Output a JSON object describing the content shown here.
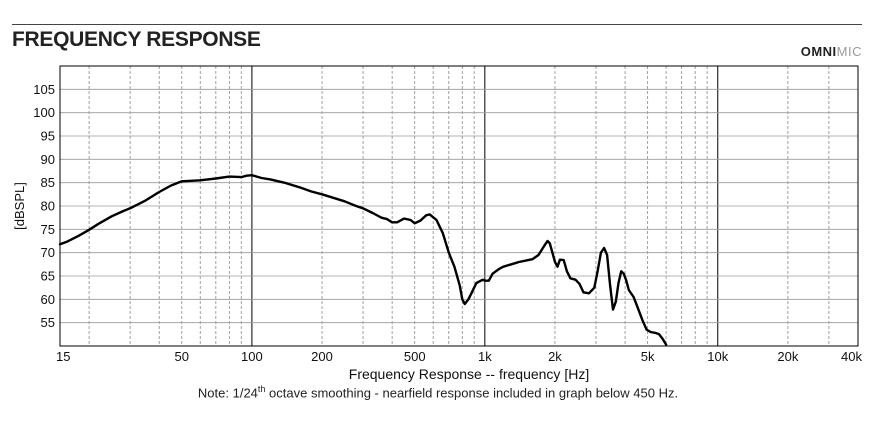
{
  "header": {
    "title": "FREQUENCY RESPONSE",
    "brand_bold": "OMNI",
    "brand_light": "MIC"
  },
  "note": {
    "prefix": "Note: 1/24",
    "superscript": "th",
    "suffix": " octave smoothing - nearfield response included in graph below 450 Hz."
  },
  "chart_data": {
    "type": "line",
    "title": "FREQUENCY RESPONSE",
    "xlabel": "Frequency Response -- frequency [Hz]",
    "ylabel": "[dBSPL]",
    "x_scale": "log",
    "xlim": [
      15,
      40000
    ],
    "ylim": [
      50,
      110
    ],
    "grid": true,
    "x_ticks": [
      {
        "value": 15,
        "label": "15"
      },
      {
        "value": 50,
        "label": "50"
      },
      {
        "value": 100,
        "label": "100"
      },
      {
        "value": 200,
        "label": "200"
      },
      {
        "value": 500,
        "label": "500"
      },
      {
        "value": 1000,
        "label": "1k"
      },
      {
        "value": 2000,
        "label": "2k"
      },
      {
        "value": 5000,
        "label": "5k"
      },
      {
        "value": 10000,
        "label": "10k"
      },
      {
        "value": 20000,
        "label": "20k"
      },
      {
        "value": 40000,
        "label": "40k"
      }
    ],
    "y_ticks": [
      55,
      60,
      65,
      70,
      75,
      80,
      85,
      90,
      95,
      100,
      105
    ],
    "series": [
      {
        "color": "#000000",
        "points": [
          [
            15,
            71.8
          ],
          [
            16,
            72.3
          ],
          [
            18,
            73.6
          ],
          [
            20,
            74.9
          ],
          [
            22,
            76.2
          ],
          [
            25,
            77.8
          ],
          [
            28,
            78.9
          ],
          [
            30,
            79.5
          ],
          [
            35,
            81.2
          ],
          [
            40,
            83.0
          ],
          [
            45,
            84.4
          ],
          [
            50,
            85.3
          ],
          [
            60,
            85.5
          ],
          [
            70,
            85.9
          ],
          [
            80,
            86.3
          ],
          [
            90,
            86.2
          ],
          [
            95,
            86.5
          ],
          [
            100,
            86.6
          ],
          [
            105,
            86.3
          ],
          [
            110,
            86.0
          ],
          [
            120,
            85.7
          ],
          [
            140,
            84.9
          ],
          [
            160,
            84.0
          ],
          [
            180,
            83.1
          ],
          [
            200,
            82.5
          ],
          [
            250,
            81.0
          ],
          [
            280,
            80.0
          ],
          [
            300,
            79.5
          ],
          [
            330,
            78.5
          ],
          [
            360,
            77.5
          ],
          [
            380,
            77.2
          ],
          [
            400,
            76.5
          ],
          [
            420,
            76.5
          ],
          [
            450,
            77.3
          ],
          [
            480,
            77.0
          ],
          [
            500,
            76.3
          ],
          [
            530,
            76.9
          ],
          [
            560,
            78.0
          ],
          [
            580,
            78.2
          ],
          [
            620,
            77.0
          ],
          [
            660,
            74.2
          ],
          [
            700,
            70.0
          ],
          [
            740,
            67.0
          ],
          [
            780,
            63.0
          ],
          [
            800,
            60.0
          ],
          [
            820,
            59.0
          ],
          [
            850,
            60.0
          ],
          [
            880,
            61.5
          ],
          [
            920,
            63.5
          ],
          [
            980,
            64.2
          ],
          [
            1000,
            64.0
          ],
          [
            1040,
            64.0
          ],
          [
            1080,
            65.5
          ],
          [
            1150,
            66.5
          ],
          [
            1200,
            67.0
          ],
          [
            1300,
            67.5
          ],
          [
            1400,
            68.0
          ],
          [
            1500,
            68.3
          ],
          [
            1600,
            68.6
          ],
          [
            1700,
            69.5
          ],
          [
            1800,
            71.5
          ],
          [
            1860,
            72.5
          ],
          [
            1900,
            72.0
          ],
          [
            1950,
            70.0
          ],
          [
            2000,
            68.0
          ],
          [
            2050,
            67.0
          ],
          [
            2100,
            68.5
          ],
          [
            2180,
            68.4
          ],
          [
            2250,
            66.0
          ],
          [
            2330,
            64.5
          ],
          [
            2450,
            64.2
          ],
          [
            2550,
            63.3
          ],
          [
            2650,
            61.5
          ],
          [
            2800,
            61.3
          ],
          [
            2950,
            62.5
          ],
          [
            3050,
            66.0
          ],
          [
            3150,
            70.0
          ],
          [
            3250,
            71.0
          ],
          [
            3350,
            69.5
          ],
          [
            3450,
            63.0
          ],
          [
            3550,
            57.8
          ],
          [
            3650,
            59.5
          ],
          [
            3750,
            63.5
          ],
          [
            3850,
            66.0
          ],
          [
            3950,
            65.5
          ],
          [
            4050,
            64.0
          ],
          [
            4150,
            62.0
          ],
          [
            4350,
            60.5
          ],
          [
            4550,
            58.0
          ],
          [
            4750,
            55.5
          ],
          [
            4950,
            53.5
          ],
          [
            5150,
            53.0
          ],
          [
            5400,
            52.8
          ],
          [
            5600,
            52.5
          ],
          [
            5800,
            51.5
          ],
          [
            6000,
            50.3
          ]
        ]
      }
    ]
  }
}
